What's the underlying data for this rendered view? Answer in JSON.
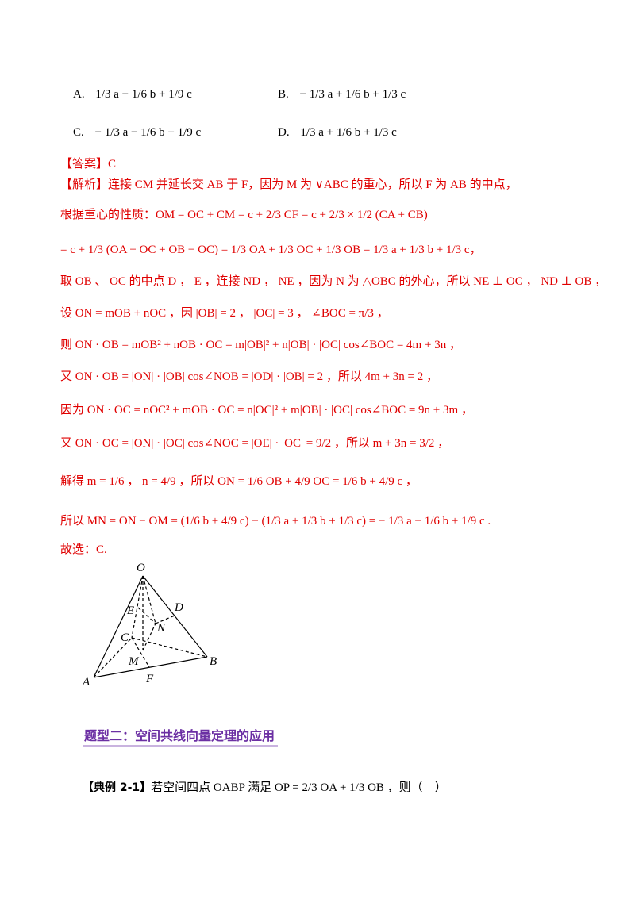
{
  "options": {
    "a": {
      "letter": "A.",
      "expr": "1/3 a − 1/6 b + 1/9 c"
    },
    "b": {
      "letter": "B.",
      "expr": "− 1/3 a + 1/6 b + 1/3 c"
    },
    "c": {
      "letter": "C.",
      "expr": "− 1/3 a − 1/6 b + 1/9 c"
    },
    "d": {
      "letter": "D.",
      "expr": "1/3 a + 1/6 b + 1/3 c"
    }
  },
  "answer": {
    "tag": "【答案】",
    "value": "C"
  },
  "analysis": {
    "tag": "【解析】",
    "line1": "连接 CM 并延长交 AB 于 F，因为 M 为 ∨ABC 的重心，所以 F 为 AB 的中点，",
    "line2": "根据重心的性质：OM = OC + CM = c + 2/3 CF = c + 2/3 × 1/2 (CA + CB)",
    "line3": "= c + 1/3 (OA − OC + OB − OC) = 1/3 OA + 1/3 OC + 1/3 OB = 1/3 a + 1/3 b + 1/3 c，",
    "line4": "取 OB 、 OC 的中点 D ， E ，连接 ND ， NE ，因为 N 为 △OBC 的外心，所以 NE ⊥ OC ， ND ⊥ OB ，",
    "line5": "设 ON = mOB + nOC ，因 |OB| = 2 ， |OC| = 3 ， ∠BOC = π/3 ，",
    "line6": "则 ON · OB = mOB² + nOB · OC = m|OB|² + n|OB| · |OC| cos∠BOC = 4m + 3n ，",
    "line7": "又 ON · OB = |ON| · |OB| cos∠NOB = |OD| · |OB| = 2 ，所以 4m + 3n = 2 ，",
    "line8": "因为 ON · OC = nOC² + mOB · OC = n|OC|² + m|OB| · |OC| cos∠BOC = 9n + 3m ，",
    "line9": "又 ON · OC = |ON| · |OC| cos∠NOC = |OE| · |OC| = 9/2 ，所以 m + 3n = 3/2 ，",
    "line10": "解得 m = 1/6 ， n = 4/9 ，所以 ON = 1/6 OB + 4/9 OC = 1/6 b + 4/9 c ，",
    "line11": "所以 MN = ON − OM = (1/6 b + 4/9 c) − (1/3 a + 1/3 b + 1/3 c) = − 1/3 a − 1/6 b + 1/9 c .",
    "line12": "故选：C."
  },
  "figure": {
    "labels": {
      "O": "O",
      "E": "E",
      "D": "D",
      "N": "N",
      "C": "C",
      "M": "M",
      "B": "B",
      "A": "A",
      "F": "F"
    }
  },
  "section_heading": "题型二：空间共线向量定理的应用",
  "example": {
    "tag": "【典例 2-1】",
    "text": "若空间四点 OABP 满足 OP = 2/3 OA + 1/3 OB ，则（　）"
  }
}
